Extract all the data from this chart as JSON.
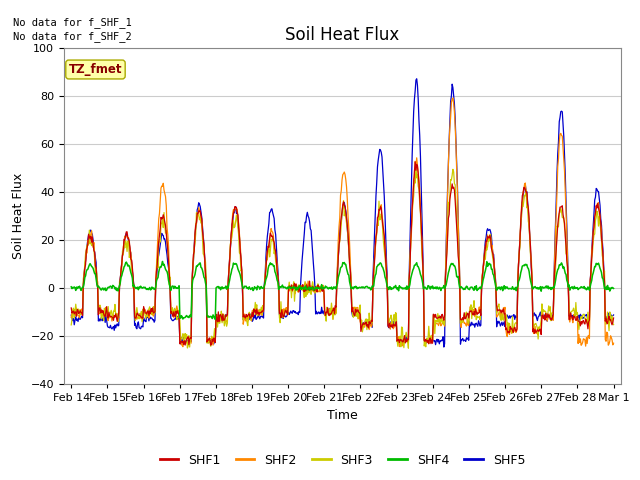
{
  "title": "Soil Heat Flux",
  "xlabel": "Time",
  "ylabel": "Soil Heat Flux",
  "ylim": [
    -40,
    100
  ],
  "yticks": [
    -40,
    -20,
    0,
    20,
    40,
    60,
    80,
    100
  ],
  "no_data_text": [
    "No data for f_SHF_1",
    "No data for f_SHF_2"
  ],
  "tz_label": "TZ_fmet",
  "colors": {
    "SHF1": "#cc0000",
    "SHF2": "#ff8800",
    "SHF3": "#cccc00",
    "SHF4": "#00bb00",
    "SHF5": "#0000cc"
  },
  "bg_color": "#ffffff",
  "fig_bg_color": "#ffffff",
  "grid_color": "#cccccc",
  "x_labels": [
    "Feb 14",
    "Feb 15",
    "Feb 16",
    "Feb 17",
    "Feb 18",
    "Feb 19",
    "Feb 20",
    "Feb 21",
    "Feb 22",
    "Feb 23",
    "Feb 24",
    "Feb 25",
    "Feb 26",
    "Feb 27",
    "Feb 28",
    "Mar 1"
  ],
  "legend_entries": [
    "SHF1",
    "SHF2",
    "SHF3",
    "SHF4",
    "SHF5"
  ]
}
